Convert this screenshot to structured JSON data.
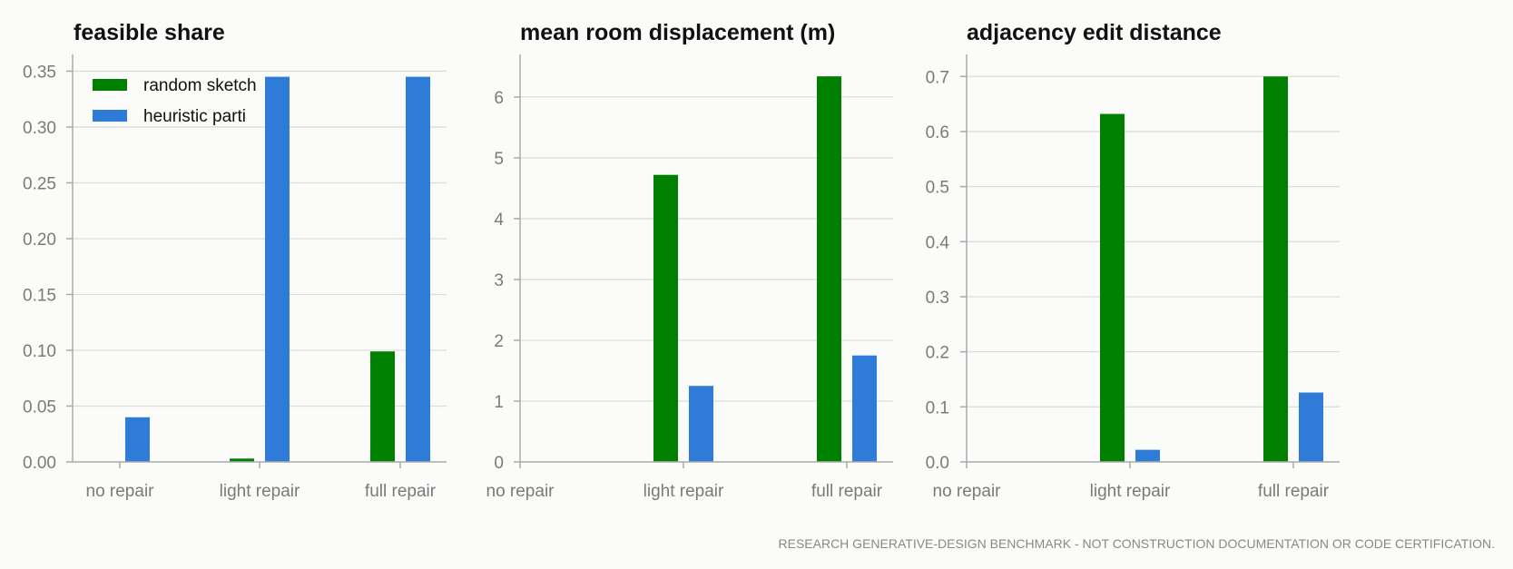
{
  "chart_data": [
    {
      "type": "bar",
      "title": "feasible share",
      "categories": [
        "no repair",
        "light repair",
        "full repair"
      ],
      "ylim": [
        0,
        0.365
      ],
      "yticks": [
        "0.00",
        "0.05",
        "0.10",
        "0.15",
        "0.20",
        "0.25",
        "0.30",
        "0.35"
      ],
      "grid": true,
      "legend": "top-left",
      "series": [
        {
          "name": "random sketch",
          "values": [
            0.0,
            0.003,
            0.099
          ]
        },
        {
          "name": "heuristic parti",
          "values": [
            0.04,
            0.345,
            0.345
          ]
        }
      ]
    },
    {
      "type": "bar",
      "title": "mean room displacement (m)",
      "categories": [
        "no repair",
        "light repair",
        "full repair"
      ],
      "ylim": [
        0,
        6.7
      ],
      "yticks": [
        "0",
        "1",
        "2",
        "3",
        "4",
        "5",
        "6"
      ],
      "grid": true,
      "series": [
        {
          "name": "random sketch",
          "values": [
            0,
            4.72,
            6.34
          ]
        },
        {
          "name": "heuristic parti",
          "values": [
            0,
            1.25,
            1.75
          ]
        }
      ]
    },
    {
      "type": "bar",
      "title": "adjacency edit distance",
      "categories": [
        "no repair",
        "light repair",
        "full repair"
      ],
      "ylim": [
        0,
        0.74
      ],
      "yticks": [
        "0.0",
        "0.1",
        "0.2",
        "0.3",
        "0.4",
        "0.5",
        "0.6",
        "0.7"
      ],
      "grid": true,
      "series": [
        {
          "name": "random sketch",
          "values": [
            0,
            0.632,
            0.7
          ]
        },
        {
          "name": "heuristic parti",
          "values": [
            0,
            0.022,
            0.126
          ]
        }
      ]
    }
  ],
  "colors": {
    "random_sketch": "#008000",
    "heuristic_parti": "#2e7bd8"
  },
  "footer": "RESEARCH GENERATIVE-DESIGN BENCHMARK - NOT CONSTRUCTION DOCUMENTATION OR CODE CERTIFICATION."
}
